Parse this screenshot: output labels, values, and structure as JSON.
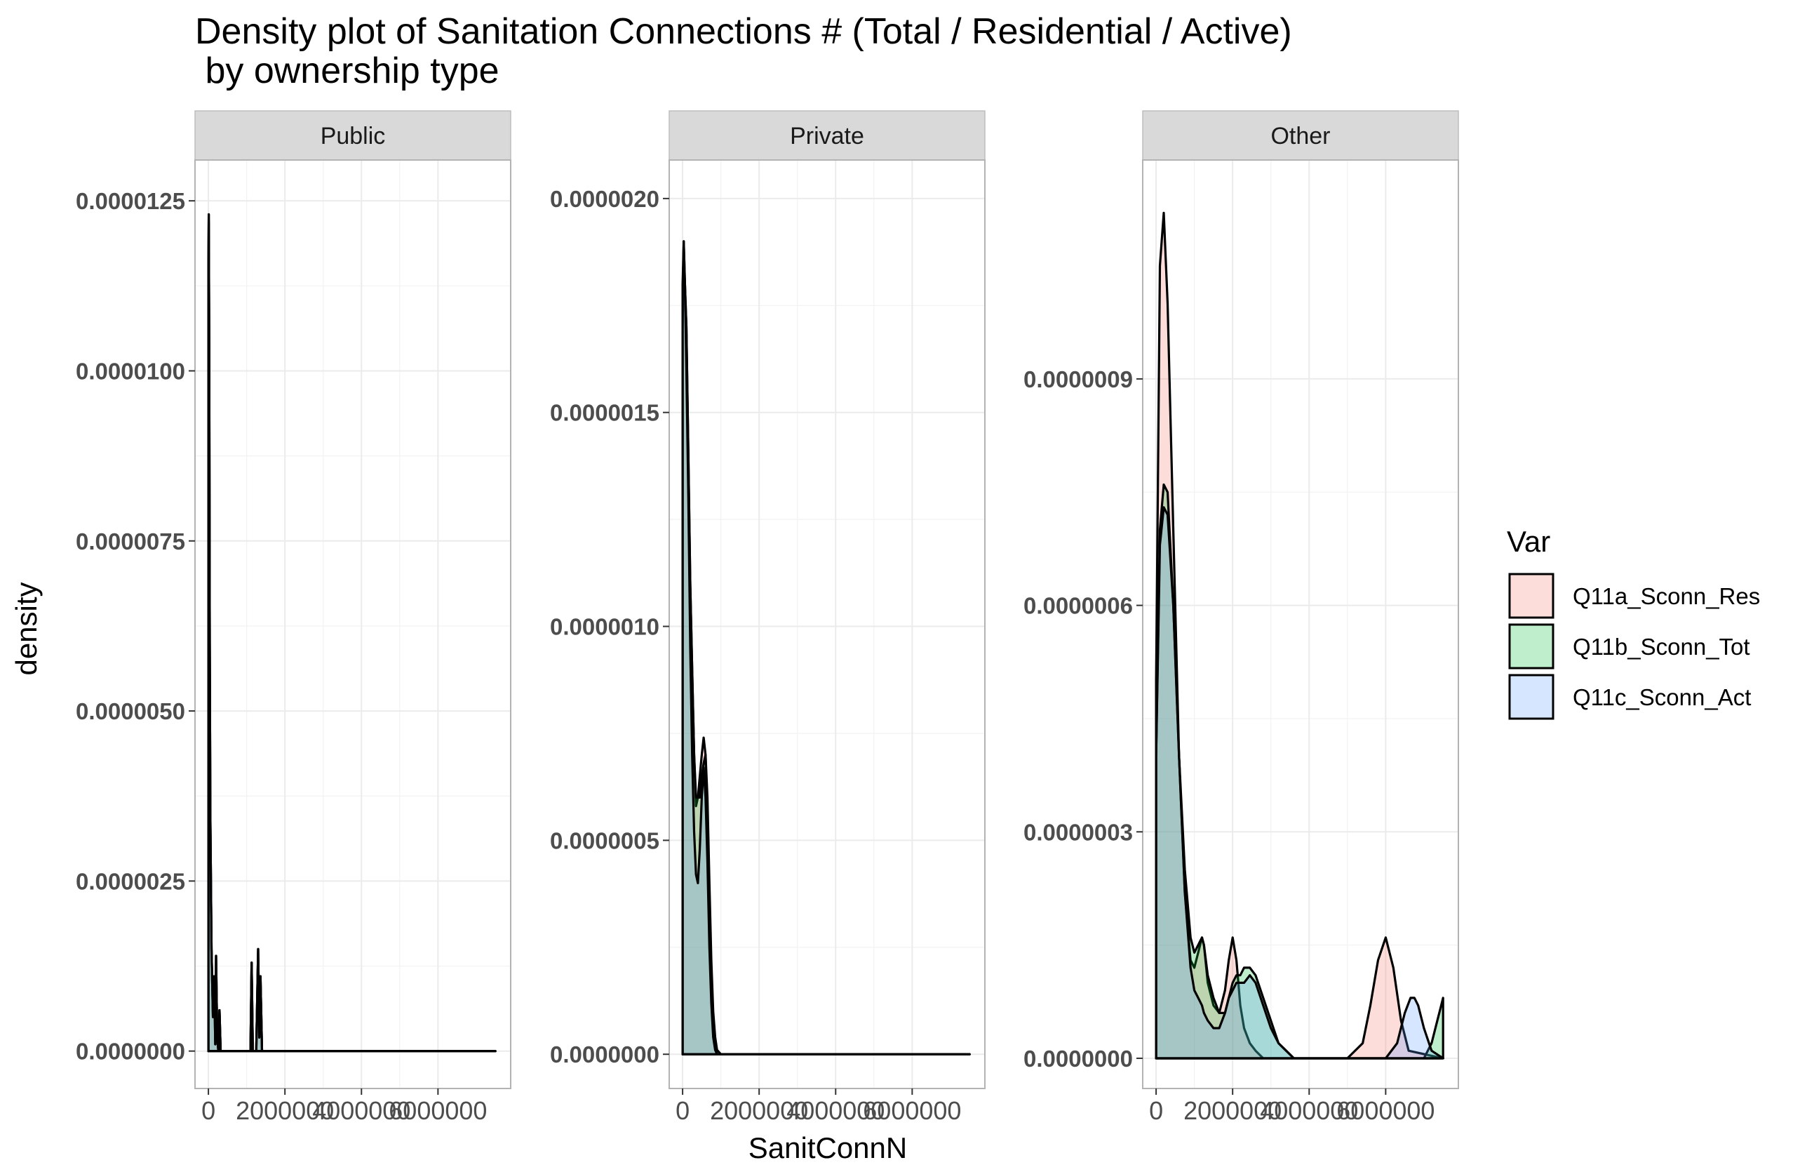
{
  "chart_data": {
    "type": "area",
    "title_line1": "Density plot of Sanitation Connections # (Total / Residential / Active)",
    "title_line2": " by ownership type",
    "xlabel": "SanitConnN",
    "ylabel": "density",
    "legend": {
      "title": "Var",
      "position": "right",
      "entries": [
        {
          "name": "Q11a_Sconn_Res",
          "color": "#F8766D"
        },
        {
          "name": "Q11b_Sconn_Tot",
          "color": "#00BA38"
        },
        {
          "name": "Q11c_Sconn_Act",
          "color": "#619CFF"
        }
      ]
    },
    "fill_opacity": 0.25,
    "grid": true,
    "x_ticks": [
      0,
      2000000,
      4000000,
      6000000
    ],
    "x_tick_labels": [
      "0",
      "2000000",
      "4000000",
      "6000000"
    ],
    "xlim": [
      -350000,
      7900000
    ],
    "panels": [
      {
        "label": "Public",
        "ylim": [
          -5.5e-07,
          1.31e-05
        ],
        "y_ticks": [
          0,
          2.5e-06,
          5e-06,
          7.5e-06,
          1e-05,
          1.25e-05
        ],
        "y_tick_labels": [
          "0.0000000",
          "0.0000025",
          "0.0000050",
          "0.0000075",
          "0.0000100",
          "0.0000125"
        ],
        "series": [
          {
            "name": "Q11a_Sconn_Res",
            "x": [
              0,
              10000,
              20000,
              35000,
              50000,
              80000,
              120000,
              150000,
              180000,
              200000,
              230000,
              260000,
              290000,
              320000,
              1000000,
              1100000,
              1130000,
              1160000,
              1200000,
              1250000,
              1300000,
              1330000,
              1360000,
              1400000,
              1450000,
              1500000,
              7500000
            ],
            "y": [
              1.12e-05,
              1.23e-05,
              1.05e-05,
              6e-06,
              3.5e-06,
              1.5e-06,
              5e-07,
              1.1e-06,
              1e-07,
              1.4e-06,
              2e-07,
              0,
              6e-07,
              0,
              0,
              0,
              1.3e-06,
              0,
              0,
              0,
              1.5e-06,
              2e-07,
              1.1e-06,
              0,
              0,
              0,
              0
            ]
          },
          {
            "name": "Q11b_Sconn_Tot",
            "x": [
              0,
              10000,
              20000,
              35000,
              50000,
              80000,
              120000,
              150000,
              180000,
              200000,
              230000,
              260000,
              290000,
              320000,
              1000000,
              1100000,
              1130000,
              1160000,
              1200000,
              1250000,
              1300000,
              1330000,
              1360000,
              1400000,
              1450000,
              1500000,
              7500000
            ],
            "y": [
              1.15e-05,
              1.23e-05,
              1.05e-05,
              6e-06,
              3.5e-06,
              1.5e-06,
              5e-07,
              1.1e-06,
              1e-07,
              1.4e-06,
              2e-07,
              0,
              6e-07,
              0,
              0,
              0,
              1.3e-06,
              0,
              0,
              0,
              1.5e-06,
              2e-07,
              1.1e-06,
              0,
              0,
              0,
              0
            ]
          },
          {
            "name": "Q11c_Sconn_Act",
            "x": [
              0,
              10000,
              20000,
              35000,
              50000,
              80000,
              120000,
              150000,
              180000,
              200000,
              230000,
              260000,
              290000,
              320000,
              1000000,
              1100000,
              1130000,
              1160000,
              1200000,
              1250000,
              1300000,
              1330000,
              1360000,
              1400000,
              1450000,
              1500000,
              7500000
            ],
            "y": [
              1.1e-05,
              1.22e-05,
              1.04e-05,
              6e-06,
              3.5e-06,
              1.5e-06,
              5e-07,
              1.1e-06,
              1e-07,
              1.4e-06,
              2e-07,
              0,
              6e-07,
              0,
              0,
              0,
              1.3e-06,
              0,
              0,
              0,
              1.5e-06,
              2e-07,
              1.1e-06,
              0,
              0,
              0,
              0
            ]
          }
        ]
      },
      {
        "label": "Private",
        "ylim": [
          -8e-08,
          2.09e-06
        ],
        "y_ticks": [
          0,
          5e-07,
          1e-06,
          1.5e-06,
          2e-06
        ],
        "y_tick_labels": [
          "0.0000000",
          "0.0000005",
          "0.0000010",
          "0.0000015",
          "0.0000020"
        ],
        "series": [
          {
            "name": "Q11a_Sconn_Res",
            "x": [
              0,
              30000,
              60000,
              100000,
              150000,
              200000,
              250000,
              300000,
              350000,
              400000,
              450000,
              500000,
              550000,
              600000,
              650000,
              700000,
              750000,
              800000,
              850000,
              900000,
              1000000,
              1200000,
              7500000
            ],
            "y": [
              1.75e-06,
              1.9e-06,
              1.8e-06,
              1.7e-06,
              1.4e-06,
              1.1e-06,
              9e-07,
              7e-07,
              5.8e-07,
              6e-07,
              6.5e-07,
              7e-07,
              7.4e-07,
              7e-07,
              5.5e-07,
              3e-07,
              1.5e-07,
              6e-08,
              2e-08,
              0,
              0,
              0,
              0
            ]
          },
          {
            "name": "Q11b_Sconn_Tot",
            "x": [
              0,
              30000,
              60000,
              100000,
              150000,
              200000,
              250000,
              300000,
              350000,
              400000,
              450000,
              500000,
              550000,
              600000,
              650000,
              700000,
              750000,
              800000,
              850000,
              900000,
              1000000,
              1200000,
              7500000
            ],
            "y": [
              1.7e-06,
              1.86e-06,
              1.8e-06,
              1.7e-06,
              1.4e-06,
              1.1e-06,
              9e-07,
              7e-07,
              6e-07,
              6e-07,
              6e-07,
              6.5e-07,
              6.8e-07,
              7e-07,
              6e-07,
              4e-07,
              2.2e-07,
              1e-07,
              4e-08,
              1e-08,
              0,
              0,
              0
            ]
          },
          {
            "name": "Q11c_Sconn_Act",
            "x": [
              0,
              30000,
              60000,
              100000,
              150000,
              200000,
              250000,
              300000,
              350000,
              400000,
              450000,
              500000,
              550000,
              600000,
              650000,
              700000,
              750000,
              800000,
              850000,
              900000,
              1000000,
              1200000,
              7500000
            ],
            "y": [
              1.8e-06,
              1.9e-06,
              1.8e-06,
              1.6e-06,
              1.3e-06,
              9.5e-07,
              7e-07,
              5.2e-07,
              4.2e-07,
              4e-07,
              4.8e-07,
              6e-07,
              6.7e-07,
              6e-07,
              4.5e-07,
              2.5e-07,
              1.2e-07,
              4e-08,
              1e-08,
              0,
              0,
              0,
              0
            ]
          }
        ]
      },
      {
        "label": "Other",
        "ylim": [
          -4e-08,
          1.19e-06
        ],
        "y_ticks": [
          0,
          3e-07,
          6e-07,
          9e-07
        ],
        "y_tick_labels": [
          "0.0000000",
          "0.0000003",
          "0.0000006",
          "0.0000009"
        ],
        "series": [
          {
            "name": "Q11a_Sconn_Res",
            "x": [
              0,
              100000,
              200000,
              300000,
              450000,
              600000,
              750000,
              900000,
              1000000,
              1100000,
              1200000,
              1250000,
              1350000,
              1500000,
              1650000,
              1800000,
              1900000,
              2000000,
              2100000,
              2200000,
              2300000,
              2450000,
              2600000,
              2800000,
              3000000,
              3200000,
              3500000,
              4000000,
              5000000,
              5400000,
              5600000,
              5800000,
              6000000,
              6200000,
              6400000,
              6600000,
              7500000
            ],
            "y": [
              5e-07,
              1.05e-06,
              1.12e-06,
              1e-06,
              7e-07,
              4e-07,
              2.2e-07,
              1.3e-07,
              1.2e-07,
              1.4e-07,
              1.6e-07,
              1.5e-07,
              1e-07,
              7e-08,
              6e-08,
              9e-08,
              1.3e-07,
              1.6e-07,
              1.3e-07,
              7e-08,
              4e-08,
              2e-08,
              1e-08,
              0,
              0,
              0,
              0,
              0,
              0,
              2e-08,
              7e-08,
              1.3e-07,
              1.6e-07,
              1.2e-07,
              5e-08,
              1e-08,
              0
            ]
          },
          {
            "name": "Q11b_Sconn_Tot",
            "x": [
              0,
              100000,
              200000,
              300000,
              450000,
              600000,
              750000,
              900000,
              1000000,
              1100000,
              1200000,
              1250000,
              1350000,
              1500000,
              1650000,
              1800000,
              1900000,
              2000000,
              2100000,
              2200000,
              2300000,
              2450000,
              2600000,
              2800000,
              3000000,
              3200000,
              3400000,
              3600000,
              3800000,
              4000000,
              7000000,
              7200000,
              7350000,
              7450000,
              7500000
            ],
            "y": [
              4e-07,
              7e-07,
              7.6e-07,
              7.5e-07,
              6e-07,
              4e-07,
              2.5e-07,
              1.6e-07,
              1.4e-07,
              1.5e-07,
              1.6e-07,
              1.5e-07,
              1.1e-07,
              8e-08,
              6e-08,
              6e-08,
              8e-08,
              1e-07,
              1.1e-07,
              1.1e-07,
              1.2e-07,
              1.2e-07,
              1.1e-07,
              8e-08,
              5e-08,
              2e-08,
              1e-08,
              0,
              0,
              0,
              0,
              2e-08,
              5e-08,
              7e-08,
              8e-08
            ]
          },
          {
            "name": "Q11c_Sconn_Act",
            "x": [
              0,
              100000,
              200000,
              300000,
              450000,
              600000,
              750000,
              900000,
              1000000,
              1100000,
              1200000,
              1250000,
              1350000,
              1500000,
              1650000,
              1800000,
              1900000,
              2000000,
              2100000,
              2200000,
              2300000,
              2450000,
              2600000,
              2800000,
              3000000,
              3200000,
              3400000,
              3600000,
              3800000,
              4000000,
              6000000,
              6300000,
              6500000,
              6650000,
              6750000,
              6850000,
              7000000,
              7200000,
              7500000
            ],
            "y": [
              4e-07,
              6.8e-07,
              7.3e-07,
              7.2e-07,
              6e-07,
              4e-07,
              2.2e-07,
              1.2e-07,
              9e-08,
              8e-08,
              7e-08,
              6e-08,
              5e-08,
              4e-08,
              4e-08,
              6e-08,
              8e-08,
              9e-08,
              1e-07,
              1e-07,
              1e-07,
              1.1e-07,
              1e-07,
              7e-08,
              4e-08,
              2e-08,
              1e-08,
              0,
              0,
              0,
              0,
              2e-08,
              6e-08,
              8e-08,
              8e-08,
              7e-08,
              4e-08,
              1e-08,
              0
            ]
          }
        ]
      }
    ]
  }
}
